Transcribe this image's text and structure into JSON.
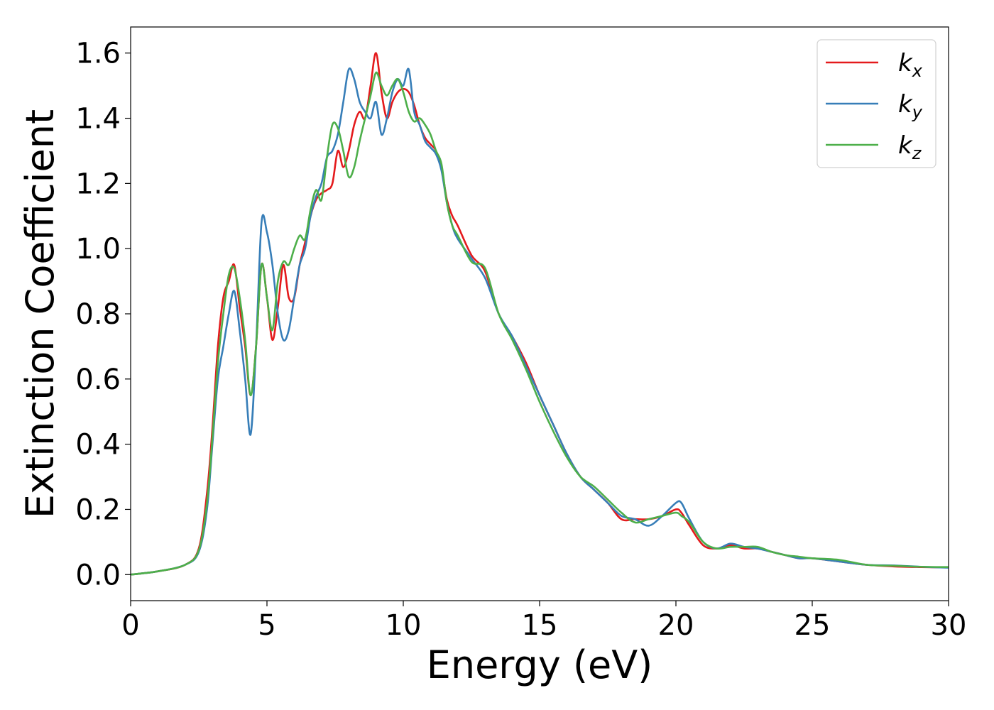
{
  "chart_data": {
    "type": "line",
    "xlabel": "Energy (eV)",
    "ylabel": "Extinction Coefficient",
    "xlim": [
      0,
      30
    ],
    "ylim": [
      -0.08,
      1.68
    ],
    "xticks": [
      0,
      5,
      10,
      15,
      20,
      25,
      30
    ],
    "xtick_labels": [
      "0",
      "5",
      "10",
      "15",
      "20",
      "25",
      "30"
    ],
    "yticks": [
      0.0,
      0.2,
      0.4,
      0.6,
      0.8,
      1.0,
      1.2,
      1.4,
      1.6
    ],
    "ytick_labels": [
      "0.0",
      "0.2",
      "0.4",
      "0.6",
      "0.8",
      "1.0",
      "1.2",
      "1.4",
      "1.6"
    ],
    "grid": false,
    "legend_position": "top-right",
    "series": [
      {
        "name": "k",
        "subscript": "x",
        "color": "#e41a1c",
        "x": [
          0,
          1,
          2,
          2.5,
          2.8,
          3,
          3.2,
          3.4,
          3.6,
          3.8,
          4,
          4.2,
          4.4,
          4.6,
          4.8,
          5,
          5.2,
          5.4,
          5.6,
          5.8,
          6,
          6.2,
          6.4,
          6.6,
          6.8,
          7,
          7.2,
          7.4,
          7.6,
          7.8,
          8,
          8.2,
          8.4,
          8.6,
          8.8,
          9,
          9.2,
          9.4,
          9.6,
          9.8,
          10,
          10.2,
          10.4,
          10.6,
          10.8,
          11,
          11.2,
          11.4,
          11.6,
          11.8,
          12,
          12.5,
          13,
          13.5,
          14,
          14.5,
          15,
          15.5,
          16,
          16.5,
          17,
          17.5,
          18,
          18.5,
          19,
          19.5,
          20,
          20.2,
          20.5,
          21,
          21.5,
          22,
          22.5,
          23,
          23.5,
          24,
          24.5,
          25,
          26,
          27,
          28,
          29,
          30
        ],
        "y": [
          0.0,
          0.01,
          0.03,
          0.08,
          0.25,
          0.45,
          0.7,
          0.85,
          0.9,
          0.95,
          0.82,
          0.7,
          0.55,
          0.7,
          0.95,
          0.85,
          0.72,
          0.82,
          0.95,
          0.85,
          0.85,
          0.95,
          1.02,
          1.1,
          1.15,
          1.17,
          1.18,
          1.2,
          1.3,
          1.25,
          1.3,
          1.38,
          1.42,
          1.4,
          1.5,
          1.6,
          1.48,
          1.4,
          1.45,
          1.48,
          1.49,
          1.48,
          1.44,
          1.38,
          1.34,
          1.32,
          1.3,
          1.25,
          1.15,
          1.1,
          1.07,
          0.98,
          0.93,
          0.8,
          0.73,
          0.65,
          0.55,
          0.46,
          0.37,
          0.3,
          0.26,
          0.22,
          0.17,
          0.17,
          0.17,
          0.18,
          0.2,
          0.19,
          0.15,
          0.09,
          0.08,
          0.09,
          0.08,
          0.08,
          0.07,
          0.06,
          0.05,
          0.05,
          0.04,
          0.03,
          0.025,
          0.023,
          0.022
        ]
      },
      {
        "name": "k",
        "subscript": "y",
        "color": "#377eb8",
        "x": [
          0,
          1,
          2,
          2.5,
          2.8,
          3,
          3.2,
          3.4,
          3.6,
          3.8,
          4,
          4.2,
          4.4,
          4.6,
          4.8,
          5,
          5.2,
          5.4,
          5.6,
          5.8,
          6,
          6.2,
          6.4,
          6.6,
          6.8,
          7,
          7.2,
          7.4,
          7.6,
          7.8,
          8,
          8.2,
          8.4,
          8.6,
          8.8,
          9,
          9.2,
          9.4,
          9.6,
          9.8,
          10,
          10.2,
          10.4,
          10.6,
          10.8,
          11,
          11.2,
          11.4,
          11.6,
          11.8,
          12,
          12.5,
          13,
          13.5,
          14,
          14.5,
          15,
          15.5,
          16,
          16.5,
          17,
          17.5,
          18,
          18.5,
          19,
          19.5,
          20,
          20.2,
          20.5,
          21,
          21.5,
          22,
          22.5,
          23,
          23.5,
          24,
          24.5,
          25,
          26,
          27,
          28,
          29,
          30
        ],
        "y": [
          0.0,
          0.01,
          0.03,
          0.07,
          0.2,
          0.4,
          0.6,
          0.7,
          0.8,
          0.87,
          0.75,
          0.6,
          0.43,
          0.7,
          1.08,
          1.05,
          0.95,
          0.8,
          0.72,
          0.75,
          0.85,
          0.95,
          1.0,
          1.1,
          1.16,
          1.2,
          1.28,
          1.3,
          1.35,
          1.45,
          1.55,
          1.52,
          1.45,
          1.42,
          1.4,
          1.45,
          1.35,
          1.4,
          1.48,
          1.52,
          1.5,
          1.55,
          1.42,
          1.38,
          1.33,
          1.31,
          1.29,
          1.24,
          1.14,
          1.07,
          1.03,
          0.97,
          0.91,
          0.8,
          0.73,
          0.64,
          0.55,
          0.46,
          0.37,
          0.3,
          0.26,
          0.22,
          0.18,
          0.17,
          0.15,
          0.18,
          0.22,
          0.22,
          0.17,
          0.1,
          0.08,
          0.095,
          0.085,
          0.08,
          0.07,
          0.06,
          0.05,
          0.05,
          0.04,
          0.03,
          0.028,
          0.024,
          0.021
        ]
      },
      {
        "name": "k",
        "subscript": "z",
        "color": "#4daf4a",
        "x": [
          0,
          1,
          2,
          2.5,
          2.8,
          3,
          3.2,
          3.4,
          3.6,
          3.8,
          4,
          4.2,
          4.4,
          4.6,
          4.8,
          5,
          5.2,
          5.4,
          5.6,
          5.8,
          6,
          6.2,
          6.4,
          6.6,
          6.8,
          7,
          7.2,
          7.4,
          7.6,
          7.8,
          8,
          8.2,
          8.4,
          8.6,
          8.8,
          9,
          9.2,
          9.4,
          9.6,
          9.8,
          10,
          10.2,
          10.4,
          10.6,
          10.8,
          11,
          11.2,
          11.4,
          11.6,
          11.8,
          12,
          12.5,
          13,
          13.5,
          14,
          14.5,
          15,
          15.5,
          16,
          16.5,
          17,
          17.5,
          18,
          18.5,
          19,
          19.5,
          20,
          20.2,
          20.5,
          21,
          21.5,
          22,
          22.5,
          23,
          23.5,
          24,
          24.5,
          25,
          26,
          27,
          28,
          29,
          30
        ],
        "y": [
          0.0,
          0.01,
          0.03,
          0.075,
          0.22,
          0.42,
          0.65,
          0.8,
          0.92,
          0.94,
          0.85,
          0.72,
          0.55,
          0.7,
          0.95,
          0.85,
          0.75,
          0.9,
          0.96,
          0.95,
          1.0,
          1.04,
          1.03,
          1.12,
          1.18,
          1.15,
          1.28,
          1.38,
          1.37,
          1.3,
          1.22,
          1.25,
          1.33,
          1.4,
          1.47,
          1.54,
          1.5,
          1.47,
          1.5,
          1.52,
          1.48,
          1.42,
          1.39,
          1.4,
          1.38,
          1.35,
          1.3,
          1.26,
          1.14,
          1.07,
          1.04,
          0.96,
          0.94,
          0.8,
          0.72,
          0.63,
          0.53,
          0.44,
          0.36,
          0.3,
          0.27,
          0.23,
          0.19,
          0.16,
          0.17,
          0.18,
          0.19,
          0.18,
          0.16,
          0.1,
          0.08,
          0.085,
          0.085,
          0.085,
          0.07,
          0.06,
          0.055,
          0.05,
          0.045,
          0.03,
          0.027,
          0.024,
          0.023
        ]
      }
    ]
  }
}
